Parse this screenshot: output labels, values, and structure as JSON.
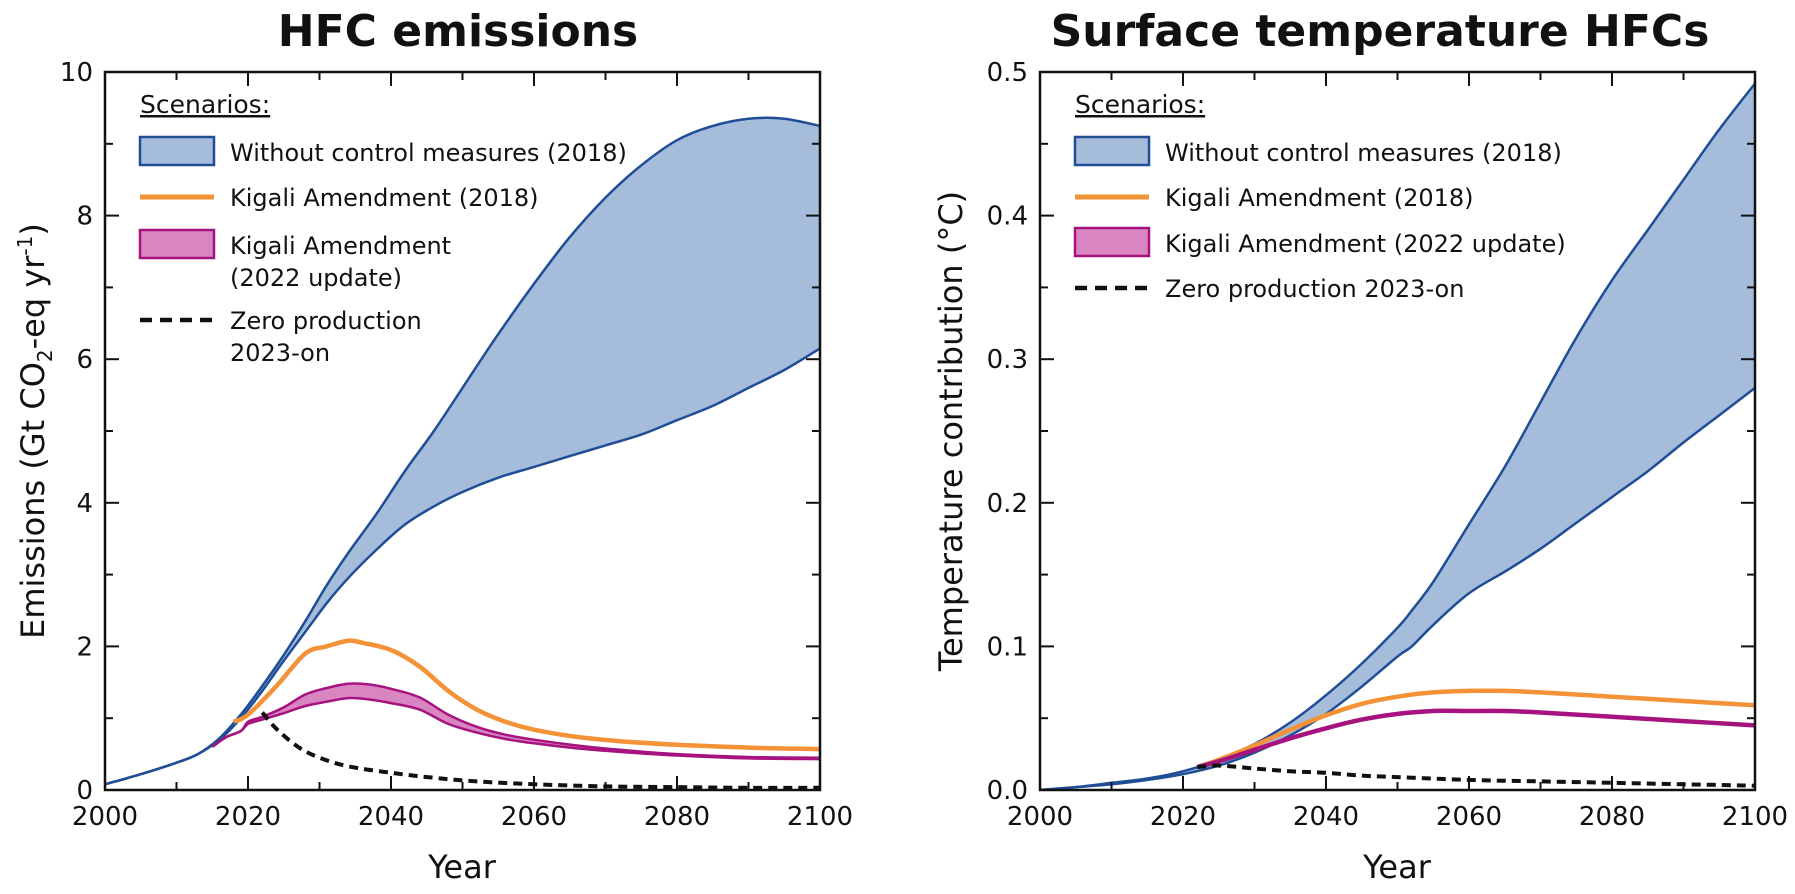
{
  "colors": {
    "no_control_fill": "#a6bcdb",
    "no_control_line": "#1f4e96",
    "kigali_2018": "#f39237",
    "kigali_2022_fill": "#d985c2",
    "kigali_2022_line": "#a6137e",
    "zero_production": "#111111"
  },
  "chart_data": [
    {
      "type": "area",
      "title": "HFC emissions",
      "xlabel": "Year",
      "ylabel": "Emissions (Gt CO2-eq yr-1)",
      "ylabel_parts": {
        "pre": "Emissions (Gt CO",
        "sub": "2",
        "mid": "-eq yr",
        "sup": "-1",
        "post": ")"
      },
      "xlim": [
        2000,
        2100
      ],
      "ylim": [
        0,
        10
      ],
      "xticks": [
        "2000",
        "2020",
        "2040",
        "2060",
        "2080",
        "2100"
      ],
      "yticks": [
        "0",
        "2",
        "4",
        "6",
        "8",
        "10"
      ],
      "legend": {
        "heading": "Scenarios:",
        "items": [
          {
            "key": "no_control",
            "lines": [
              "Without control measures (2018)"
            ]
          },
          {
            "key": "kigali_2018",
            "lines": [
              "Kigali Amendment (2018)"
            ]
          },
          {
            "key": "kigali_2022",
            "lines": [
              "Kigali Amendment",
              "(2022 update)"
            ]
          },
          {
            "key": "zero",
            "lines": [
              "Zero production",
              "2023-on"
            ]
          }
        ]
      },
      "series": [
        {
          "key": "no_control",
          "kind": "band",
          "x": [
            2000,
            2005,
            2010,
            2013,
            2016,
            2019,
            2022,
            2025,
            2028,
            2031,
            2034,
            2038,
            2042,
            2046,
            2050,
            2055,
            2060,
            2065,
            2070,
            2075,
            2080,
            2085,
            2090,
            2095,
            2100
          ],
          "upper": [
            0.08,
            0.22,
            0.38,
            0.5,
            0.72,
            1.05,
            1.45,
            1.88,
            2.35,
            2.85,
            3.3,
            3.85,
            4.45,
            5.0,
            5.6,
            6.35,
            7.05,
            7.7,
            8.25,
            8.7,
            9.05,
            9.25,
            9.35,
            9.35,
            9.25
          ],
          "lower": [
            0.08,
            0.22,
            0.38,
            0.5,
            0.7,
            1.0,
            1.38,
            1.8,
            2.2,
            2.6,
            2.95,
            3.35,
            3.7,
            3.95,
            4.15,
            4.35,
            4.5,
            4.65,
            4.8,
            4.95,
            5.15,
            5.35,
            5.6,
            5.85,
            6.15
          ]
        },
        {
          "key": "kigali_2018",
          "kind": "line",
          "x": [
            2018,
            2020,
            2024,
            2028,
            2031,
            2034,
            2036,
            2040,
            2044,
            2048,
            2052,
            2056,
            2060,
            2066,
            2072,
            2080,
            2090,
            2100
          ],
          "y": [
            0.95,
            1.05,
            1.45,
            1.9,
            2.0,
            2.08,
            2.05,
            1.95,
            1.72,
            1.38,
            1.12,
            0.95,
            0.84,
            0.74,
            0.68,
            0.63,
            0.59,
            0.57
          ]
        },
        {
          "key": "kigali_2022",
          "kind": "band",
          "x": [
            2015,
            2017,
            2019,
            2020,
            2022,
            2025,
            2028,
            2031,
            2034,
            2037,
            2040,
            2044,
            2048,
            2052,
            2056,
            2060,
            2066,
            2072,
            2080,
            2090,
            2100
          ],
          "upper": [
            0.6,
            0.74,
            0.82,
            0.95,
            1.02,
            1.15,
            1.33,
            1.42,
            1.48,
            1.47,
            1.41,
            1.29,
            1.05,
            0.88,
            0.77,
            0.7,
            0.62,
            0.56,
            0.5,
            0.46,
            0.45
          ],
          "lower": [
            0.6,
            0.74,
            0.82,
            0.92,
            0.98,
            1.07,
            1.17,
            1.23,
            1.28,
            1.26,
            1.21,
            1.12,
            0.92,
            0.8,
            0.71,
            0.65,
            0.58,
            0.53,
            0.48,
            0.44,
            0.43
          ]
        },
        {
          "key": "zero",
          "kind": "dashed",
          "x": [
            2022,
            2024,
            2027,
            2030,
            2034,
            2040,
            2046,
            2052,
            2060,
            2070,
            2080,
            2090,
            2100
          ],
          "y": [
            1.08,
            0.85,
            0.6,
            0.45,
            0.33,
            0.24,
            0.17,
            0.12,
            0.08,
            0.05,
            0.04,
            0.03,
            0.03
          ]
        }
      ]
    },
    {
      "type": "area",
      "title": "Surface temperature HFCs",
      "xlabel": "Year",
      "ylabel": "Temperature contribution (°C)",
      "xlim": [
        2000,
        2100
      ],
      "ylim": [
        0,
        0.5
      ],
      "xticks": [
        "2000",
        "2020",
        "2040",
        "2060",
        "2080",
        "2100"
      ],
      "yticks": [
        "0.0",
        "0.1",
        "0.2",
        "0.3",
        "0.4",
        "0.5"
      ],
      "legend": {
        "heading": "Scenarios:",
        "items": [
          {
            "key": "no_control",
            "lines": [
              "Without control measures (2018)"
            ]
          },
          {
            "key": "kigali_2018",
            "lines": [
              "Kigali Amendment (2018)"
            ]
          },
          {
            "key": "kigali_2022",
            "lines": [
              "Kigali Amendment (2022 update)"
            ]
          },
          {
            "key": "zero",
            "lines": [
              "Zero production 2023-on"
            ]
          }
        ]
      },
      "series": [
        {
          "key": "no_control",
          "kind": "band",
          "x": [
            2000,
            2005,
            2010,
            2015,
            2020,
            2025,
            2030,
            2035,
            2040,
            2045,
            2050,
            2052,
            2055,
            2060,
            2065,
            2070,
            2075,
            2080,
            2085,
            2090,
            2095,
            2100
          ],
          "upper": [
            0.0,
            0.002,
            0.005,
            0.008,
            0.013,
            0.021,
            0.032,
            0.047,
            0.066,
            0.088,
            0.113,
            0.125,
            0.145,
            0.185,
            0.225,
            0.27,
            0.315,
            0.355,
            0.39,
            0.425,
            0.46,
            0.492
          ],
          "lower": [
            0.0,
            0.002,
            0.004,
            0.007,
            0.011,
            0.017,
            0.026,
            0.038,
            0.053,
            0.072,
            0.093,
            0.1,
            0.115,
            0.137,
            0.152,
            0.168,
            0.186,
            0.204,
            0.222,
            0.242,
            0.261,
            0.28
          ]
        },
        {
          "key": "kigali_2018",
          "kind": "line",
          "x": [
            2022,
            2025,
            2030,
            2035,
            2040,
            2045,
            2050,
            2055,
            2060,
            2065,
            2070,
            2080,
            2090,
            2100
          ],
          "y": [
            0.016,
            0.021,
            0.031,
            0.042,
            0.052,
            0.06,
            0.065,
            0.068,
            0.069,
            0.069,
            0.068,
            0.065,
            0.062,
            0.059
          ]
        },
        {
          "key": "kigali_2022",
          "kind": "line",
          "x": [
            2022,
            2025,
            2030,
            2035,
            2040,
            2045,
            2050,
            2055,
            2060,
            2065,
            2070,
            2080,
            2090,
            2100
          ],
          "y": [
            0.016,
            0.02,
            0.028,
            0.036,
            0.043,
            0.049,
            0.053,
            0.055,
            0.055,
            0.055,
            0.054,
            0.051,
            0.048,
            0.045
          ]
        },
        {
          "key": "zero",
          "kind": "dashed",
          "x": [
            2022,
            2025,
            2030,
            2035,
            2040,
            2045,
            2050,
            2060,
            2070,
            2080,
            2090,
            2100
          ],
          "y": [
            0.016,
            0.017,
            0.015,
            0.013,
            0.012,
            0.01,
            0.009,
            0.007,
            0.006,
            0.005,
            0.004,
            0.003
          ]
        }
      ]
    }
  ]
}
